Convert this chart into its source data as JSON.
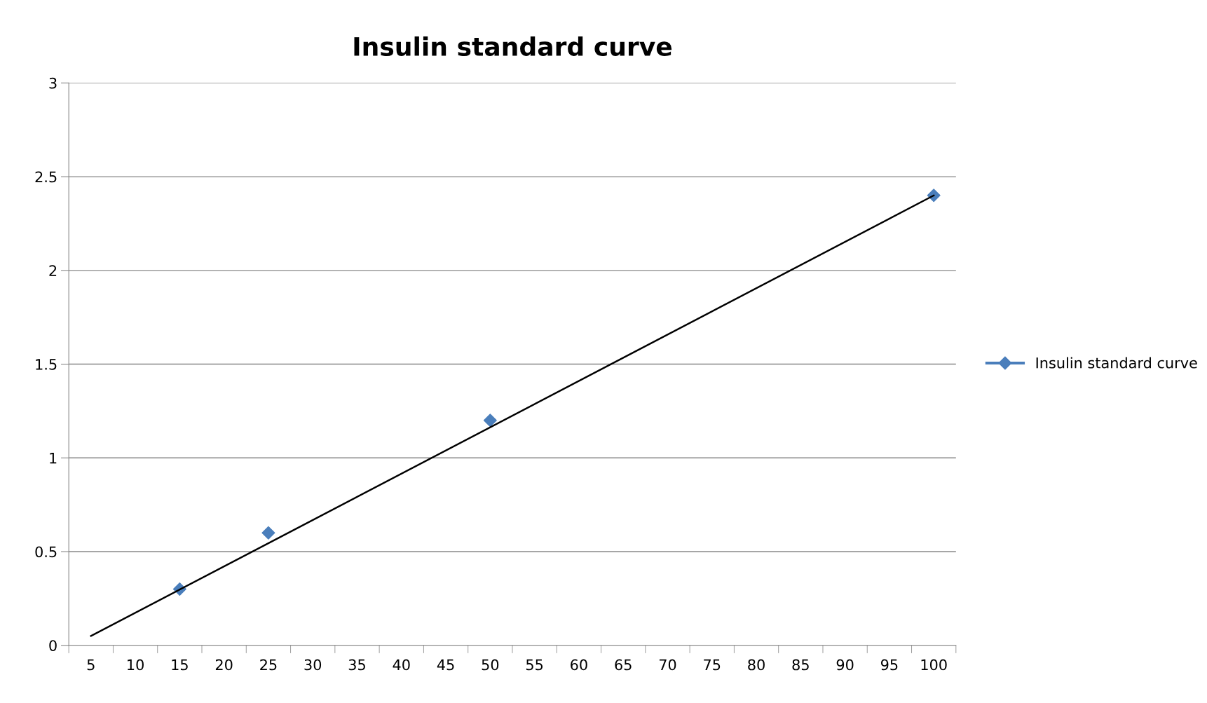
{
  "chart_data": {
    "type": "line",
    "title": "Insulin standard curve",
    "categories": [
      "5",
      "10",
      "15",
      "20",
      "25",
      "30",
      "35",
      "40",
      "45",
      "50",
      "55",
      "60",
      "65",
      "70",
      "75",
      "80",
      "85",
      "90",
      "95",
      "100"
    ],
    "series": [
      {
        "name": "Insulin standard curve",
        "type": "scatter",
        "color": "#4a7ebb",
        "marker": "diamond",
        "x": [
          "15",
          "25",
          "50",
          "100"
        ],
        "values": [
          0.3,
          0.6,
          1.2,
          2.4
        ]
      },
      {
        "color": "#000000",
        "marker": "none",
        "x": [
          "5",
          "100"
        ],
        "values": [
          0.05,
          2.4
        ]
      }
    ],
    "ylim": [
      0,
      3
    ],
    "yticks": [
      0,
      0.5,
      1,
      1.5,
      2,
      2.5,
      3
    ],
    "grid": "y",
    "legend": "right"
  }
}
